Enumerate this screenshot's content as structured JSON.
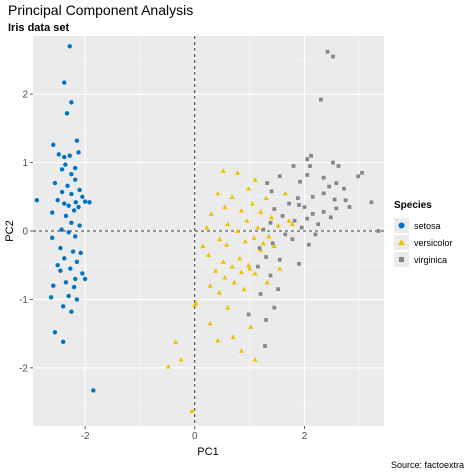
{
  "title": "Principal Component Analysis",
  "subtitle": "Iris data set",
  "source": "Source: factoextra",
  "chart_data": {
    "type": "scatter",
    "xlabel": "PC1",
    "ylabel": "PC2",
    "xlim": [
      -2.95,
      3.45
    ],
    "ylim": [
      -2.85,
      2.85
    ],
    "xticks": [
      -2,
      0,
      2
    ],
    "yticks": [
      -2,
      -1,
      0,
      1,
      2
    ],
    "grid": true,
    "reference_lines": {
      "x": 0,
      "y": 0,
      "style": "dashed"
    },
    "legend": {
      "title": "Species",
      "position": "right"
    },
    "series": [
      {
        "name": "setosa",
        "color": "#0073C2",
        "shape": "circle",
        "points": [
          [
            -2.28,
            2.7
          ],
          [
            -2.38,
            2.17
          ],
          [
            -2.25,
            1.88
          ],
          [
            -2.33,
            1.72
          ],
          [
            -2.15,
            1.32
          ],
          [
            -2.58,
            1.26
          ],
          [
            -2.12,
            1.15
          ],
          [
            -2.48,
            1.12
          ],
          [
            -2.38,
            1.08
          ],
          [
            -2.28,
            1.1
          ],
          [
            -2.36,
            0.97
          ],
          [
            -2.18,
            0.92
          ],
          [
            -2.42,
            0.9
          ],
          [
            -2.25,
            0.83
          ],
          [
            -2.18,
            0.75
          ],
          [
            -2.55,
            0.7
          ],
          [
            -2.32,
            0.66
          ],
          [
            -2.1,
            0.6
          ],
          [
            -2.42,
            0.57
          ],
          [
            -2.25,
            0.54
          ],
          [
            -2.05,
            0.5
          ],
          [
            -2.5,
            0.45
          ],
          [
            -2.17,
            0.42
          ],
          [
            -2.0,
            0.43
          ],
          [
            -2.38,
            0.4
          ],
          [
            -2.3,
            0.37
          ],
          [
            -2.12,
            0.35
          ],
          [
            -2.88,
            0.45
          ],
          [
            -1.92,
            0.42
          ],
          [
            -2.2,
            0.3
          ],
          [
            -2.6,
            0.27
          ],
          [
            -2.35,
            0.22
          ],
          [
            -2.25,
            0.12
          ],
          [
            -2.1,
            0.08
          ],
          [
            -2.43,
            0.02
          ],
          [
            -2.3,
            -0.02
          ],
          [
            -2.18,
            -0.08
          ],
          [
            -2.6,
            -0.1
          ],
          [
            -2.45,
            -0.25
          ],
          [
            -2.22,
            -0.3
          ],
          [
            -2.08,
            -0.32
          ],
          [
            -2.38,
            -0.4
          ],
          [
            -2.15,
            -0.45
          ],
          [
            -2.5,
            -0.5
          ],
          [
            -2.27,
            -0.55
          ],
          [
            -2.45,
            -0.58
          ],
          [
            -2.05,
            -0.62
          ],
          [
            -2.18,
            -0.7
          ],
          [
            -2.35,
            -0.75
          ],
          [
            -2.58,
            -0.8
          ],
          [
            -2.2,
            -0.82
          ],
          [
            -2.0,
            -0.7
          ],
          [
            -2.3,
            -0.95
          ],
          [
            -2.62,
            -0.97
          ],
          [
            -2.4,
            -1.1
          ],
          [
            -2.15,
            -1.0
          ],
          [
            -2.25,
            -1.18
          ],
          [
            -2.55,
            -1.48
          ],
          [
            -2.4,
            -1.62
          ],
          [
            -1.85,
            -2.33
          ]
        ]
      },
      {
        "name": "versicolor",
        "color": "#EFC000",
        "shape": "triangle",
        "points": [
          [
            0.52,
            0.88
          ],
          [
            0.78,
            0.85
          ],
          [
            1.1,
            0.75
          ],
          [
            0.98,
            0.62
          ],
          [
            0.42,
            0.55
          ],
          [
            0.68,
            0.5
          ],
          [
            1.3,
            0.48
          ],
          [
            1.05,
            0.4
          ],
          [
            0.55,
            0.35
          ],
          [
            0.85,
            0.3
          ],
          [
            1.2,
            0.28
          ],
          [
            0.3,
            0.25
          ],
          [
            1.4,
            0.2
          ],
          [
            1.65,
            0.55
          ],
          [
            1.72,
            0.15
          ],
          [
            0.95,
            0.15
          ],
          [
            0.6,
            0.1
          ],
          [
            1.15,
            0.05
          ],
          [
            1.52,
            0.08
          ],
          [
            1.78,
            0.1
          ],
          [
            0.22,
            0.05
          ],
          [
            0.78,
            0.0
          ],
          [
            1.35,
            -0.08
          ],
          [
            1.08,
            -0.1
          ],
          [
            0.45,
            -0.12
          ],
          [
            0.92,
            -0.15
          ],
          [
            1.25,
            -0.18
          ],
          [
            0.58,
            -0.2
          ],
          [
            1.45,
            -0.22
          ],
          [
            0.15,
            -0.22
          ],
          [
            1.2,
            -0.28
          ],
          [
            0.25,
            -0.35
          ],
          [
            0.82,
            -0.4
          ],
          [
            0.52,
            -0.45
          ],
          [
            0.98,
            -0.5
          ],
          [
            0.68,
            -0.52
          ],
          [
            1.0,
            -0.55
          ],
          [
            0.38,
            -0.58
          ],
          [
            0.85,
            -0.6
          ],
          [
            1.1,
            -0.62
          ],
          [
            0.55,
            -0.68
          ],
          [
            0.72,
            -0.75
          ],
          [
            0.28,
            -0.8
          ],
          [
            0.9,
            -0.85
          ],
          [
            0.45,
            -0.9
          ],
          [
            0.02,
            -1.05
          ],
          [
            0.0,
            -1.08
          ],
          [
            0.6,
            -1.12
          ],
          [
            0.28,
            -1.35
          ],
          [
            1.02,
            -1.4
          ],
          [
            0.7,
            -1.55
          ],
          [
            0.42,
            -1.6
          ],
          [
            0.85,
            -1.75
          ],
          [
            -0.35,
            -1.62
          ],
          [
            -0.25,
            -1.88
          ],
          [
            -0.48,
            -1.98
          ],
          [
            -0.05,
            -2.63
          ],
          [
            1.32,
            -0.75
          ],
          [
            1.1,
            -1.88
          ],
          [
            1.55,
            -0.55
          ]
        ]
      },
      {
        "name": "virginica",
        "color": "#868686",
        "shape": "square",
        "points": [
          [
            2.42,
            2.62
          ],
          [
            2.52,
            2.55
          ],
          [
            2.3,
            1.92
          ],
          [
            3.05,
            0.85
          ],
          [
            2.98,
            0.8
          ],
          [
            2.12,
            1.1
          ],
          [
            2.52,
            1.0
          ],
          [
            2.05,
            1.05
          ],
          [
            2.62,
            0.95
          ],
          [
            1.8,
            0.95
          ],
          [
            2.05,
            0.82
          ],
          [
            1.55,
            0.8
          ],
          [
            2.35,
            0.78
          ],
          [
            1.92,
            0.72
          ],
          [
            2.58,
            0.7
          ],
          [
            1.32,
            0.7
          ],
          [
            2.72,
            0.62
          ],
          [
            1.4,
            0.58
          ],
          [
            2.35,
            0.55
          ],
          [
            2.15,
            0.5
          ],
          [
            1.88,
            0.48
          ],
          [
            2.55,
            0.46
          ],
          [
            2.75,
            0.45
          ],
          [
            3.22,
            0.42
          ],
          [
            1.72,
            0.4
          ],
          [
            1.9,
            0.38
          ],
          [
            2.0,
            0.35
          ],
          [
            2.58,
            0.33
          ],
          [
            2.82,
            0.35
          ],
          [
            1.45,
            0.32
          ],
          [
            2.35,
            0.28
          ],
          [
            2.15,
            0.25
          ],
          [
            1.6,
            0.22
          ],
          [
            2.48,
            0.2
          ],
          [
            2.05,
            0.18
          ],
          [
            1.82,
            0.15
          ],
          [
            1.38,
            0.12
          ],
          [
            2.25,
            0.1
          ],
          [
            1.95,
            0.05
          ],
          [
            1.25,
            0.02
          ],
          [
            3.35,
            0.0
          ],
          [
            1.65,
            -0.05
          ],
          [
            2.2,
            -0.05
          ],
          [
            1.78,
            -0.12
          ],
          [
            1.42,
            -0.18
          ],
          [
            2.08,
            -0.2
          ],
          [
            1.18,
            -0.25
          ],
          [
            1.3,
            -0.38
          ],
          [
            1.55,
            -0.42
          ],
          [
            1.9,
            -0.48
          ],
          [
            1.15,
            -0.52
          ],
          [
            1.38,
            -0.65
          ],
          [
            1.52,
            -0.85
          ],
          [
            1.2,
            -0.92
          ],
          [
            1.45,
            -1.12
          ],
          [
            0.98,
            -1.22
          ],
          [
            1.3,
            -1.3
          ],
          [
            1.28,
            -1.68
          ],
          [
            2.1,
            0.95
          ],
          [
            2.45,
            0.65
          ]
        ]
      }
    ]
  }
}
